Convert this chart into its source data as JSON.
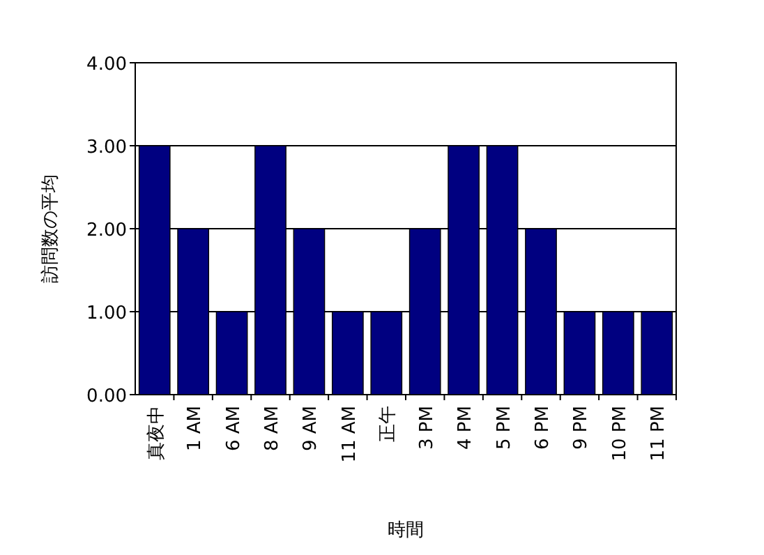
{
  "chart_data": {
    "type": "bar",
    "xlabel": "時間",
    "ylabel": "訪問数の平均",
    "categories": [
      "真夜中",
      "1 AM",
      "6 AM",
      "8 AM",
      "9 AM",
      "11 AM",
      "正午",
      "3 PM",
      "4 PM",
      "5 PM",
      "6 PM",
      "9 PM",
      "10 PM",
      "11 PM"
    ],
    "values": [
      3,
      2,
      1,
      3,
      2,
      1,
      1,
      2,
      3,
      3,
      2,
      1,
      1,
      1
    ],
    "color": "#000080",
    "ylim": [
      0,
      4
    ],
    "yticks": [
      {
        "value": 0,
        "label": "0.00"
      },
      {
        "value": 1,
        "label": "1.00"
      },
      {
        "value": 2,
        "label": "2.00"
      },
      {
        "value": 3,
        "label": "3.00"
      },
      {
        "value": 4,
        "label": "4.00"
      }
    ],
    "grid": "y"
  }
}
